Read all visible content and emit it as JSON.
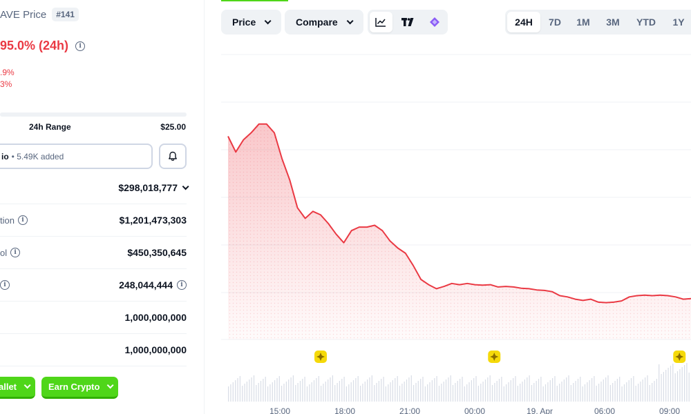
{
  "left": {
    "title": "AVE Price",
    "rank": "#141",
    "price_change": "95.0% (24h)",
    "small_changes": [
      ".9%",
      "3%"
    ],
    "range_label": "24h Range",
    "range_high": "$25.00",
    "portfolio_label": "io",
    "portfolio_added": "5.49K added",
    "stats": [
      {
        "label": "",
        "value": "$298,018,777",
        "has_info": false,
        "has_chevron": true
      },
      {
        "label": "tion",
        "value": "$1,201,473,303",
        "has_info": true,
        "has_chevron": false
      },
      {
        "label": "ol",
        "value": "$450,350,645",
        "has_info": true,
        "has_chevron": false
      },
      {
        "label": "",
        "value": "248,044,444",
        "has_info": true,
        "has_chevron": false
      },
      {
        "label": "",
        "value": "1,000,000,000",
        "has_info": false,
        "has_chevron": false
      },
      {
        "label": "",
        "value": "1,000,000,000",
        "has_info": false,
        "has_chevron": false
      }
    ],
    "wallet_btn": "allet",
    "earn_btn": "Earn Crypto"
  },
  "toolbar": {
    "price_btn": "Price",
    "compare_btn": "Compare",
    "icons": [
      "line-chart-icon",
      "tradingview-icon",
      "logo-icon"
    ],
    "ranges": [
      "24H",
      "7D",
      "1M",
      "3M",
      "YTD",
      "1Y"
    ],
    "active_range": "24H"
  },
  "colors": {
    "line": "#ea3943",
    "accent_green": "#4fd619",
    "event_marker": "#f5d90a"
  },
  "chart_data": {
    "type": "area",
    "x_ticks": [
      "15:00",
      "18:00",
      "21:00",
      "00:00",
      "19. Apr",
      "06:00",
      "09:00"
    ],
    "x": [
      0,
      0.4,
      0.8,
      1.2,
      1.6,
      2.0,
      2.4,
      2.8,
      3.2,
      3.6,
      4.0,
      4.4,
      4.8,
      5.2,
      5.6,
      6.0,
      6.4,
      6.8,
      7.2,
      7.6,
      8.0,
      8.4,
      8.8,
      9.2,
      9.6,
      10.0,
      10.4,
      10.8,
      11.2,
      11.6,
      12.0,
      12.4,
      12.8,
      13.2,
      13.6,
      14.0,
      14.4,
      14.8,
      15.2,
      15.6,
      16.0,
      16.4,
      16.8,
      17.2,
      17.6,
      18.0,
      18.4,
      18.8,
      19.2,
      19.6,
      20.0,
      20.4,
      20.8,
      21.2,
      21.6,
      22.0,
      22.4,
      22.8,
      23.2,
      23.6,
      24.0
    ],
    "values": [
      92,
      84,
      90,
      95,
      99,
      100,
      94,
      80,
      67,
      52,
      45,
      50,
      47,
      43,
      36,
      32,
      38,
      41,
      40,
      42,
      38,
      33,
      28,
      26,
      18,
      11,
      7,
      5,
      6,
      8,
      7,
      8,
      7,
      7,
      7,
      6,
      6,
      6,
      5,
      5,
      4,
      4,
      3,
      1,
      0,
      -1,
      -2,
      -1,
      -3,
      -3,
      -3,
      -2,
      0,
      1,
      1,
      1,
      1,
      1,
      0,
      -1,
      -1
    ],
    "ylim": [
      -10,
      110
    ],
    "event_markers_at": [
      4.8,
      13.8,
      23.4
    ]
  }
}
